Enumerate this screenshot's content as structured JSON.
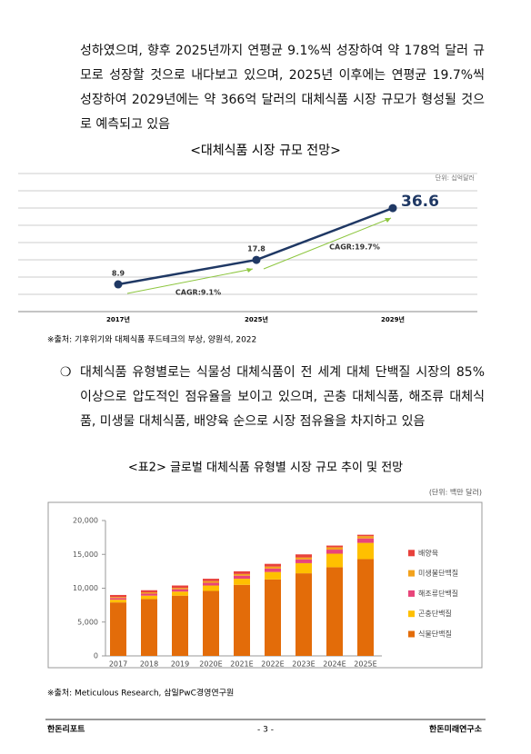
{
  "paragraphs": [
    "성하였으며, 향후 2025년까지 연평균 9.1%씩 성장하여 약 178억 달러 규모로 성장할 것으로 내다보고 있으며, 2025년 이후에는 연평균 19.7%씩 성장하여 2029년에는 약 366억 달러의 대체식품 시장 규모가 형성될 것으로 예측되고 있음",
    "대체식품 유형별로는 식물성 대체식품이 전 세계 대체 단백질 시장의 85% 이상으로 압도적인 점유율을 보이고 있으며, 곤충 대체식품, 해조류 대체식품, 미생물 대체식품, 배양육 순으로 시장 점유율을 차지하고 있음"
  ],
  "bullet": "❍",
  "chart_data": [
    {
      "type": "line",
      "title": "<대체식품 시장 규모 전망>",
      "unit": "단위: 십억달러",
      "categories": [
        "2017년",
        "2025년",
        "2029년"
      ],
      "values": [
        8.9,
        17.8,
        36.6
      ],
      "color": "#1f3864",
      "annotations": [
        "CAGR:9.1%",
        "CAGR:19.7%"
      ],
      "ylim": [
        0,
        50
      ]
    },
    {
      "type": "bar",
      "stacked": true,
      "title": "<표2> 글로벌 대체식품 유형별 시장 규모 추이 및 전망",
      "unit": "(단위: 백만 달러)",
      "categories": [
        "2017",
        "2018",
        "2019",
        "2020E",
        "2021E",
        "2022E",
        "2023E",
        "2024E",
        "2025E"
      ],
      "series": [
        {
          "name": "식물단백질",
          "color": "#e36c09",
          "values": [
            7900,
            8400,
            8900,
            9600,
            10500,
            11300,
            12200,
            13100,
            14300
          ]
        },
        {
          "name": "곤충단백질",
          "color": "#ffc000",
          "values": [
            400,
            500,
            600,
            800,
            900,
            1100,
            1500,
            2000,
            2400
          ]
        },
        {
          "name": "해조류단백질",
          "color": "#e8457a",
          "values": [
            250,
            300,
            350,
            400,
            450,
            500,
            550,
            600,
            650
          ]
        },
        {
          "name": "미생물단백질",
          "color": "#f3a21c",
          "values": [
            150,
            200,
            200,
            250,
            250,
            300,
            300,
            350,
            350
          ]
        },
        {
          "name": "배양육",
          "color": "#e8413c",
          "values": [
            300,
            300,
            350,
            350,
            400,
            400,
            450,
            250,
            200
          ]
        }
      ],
      "ylim": [
        0,
        20000
      ],
      "yticks": [
        0,
        {
          "value": 5000,
          "label": "5,000"
        },
        {
          "value": 10000,
          "label": "10,000"
        },
        {
          "value": 15000,
          "label": "15,000"
        },
        {
          "value": 20000,
          "label": "20,000"
        }
      ],
      "legend": "right"
    }
  ],
  "sources": [
    "※출처: 기후위기와 대체식품 푸드테크의 부상, 양원석, 2022",
    "※출처: Meticulous Research, 삼일PwC경영연구원"
  ],
  "footer": {
    "left": "한돈리포트",
    "center": "- 3 -",
    "right": "한돈미래연구소"
  }
}
